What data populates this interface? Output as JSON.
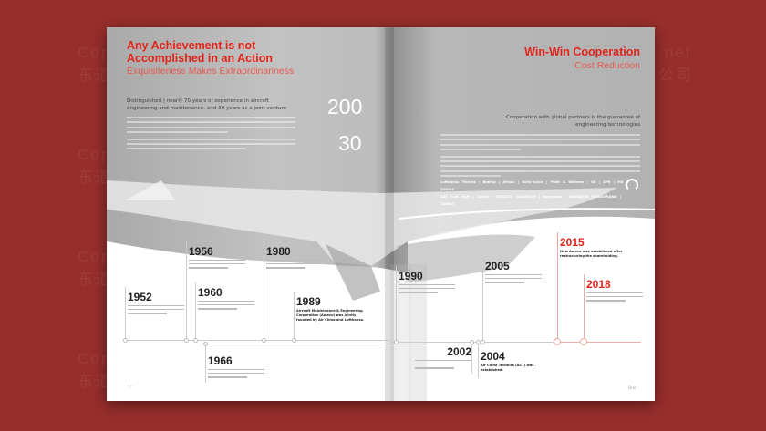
{
  "watermark": {
    "line1": "Copyright",
    "line1_end": ".net",
    "line2": "东道",
    "line2_end": "公司"
  },
  "left_page": {
    "title": "Any Achievement is not Accomplished in an Action",
    "subtitle": "Exquisiteness Makes Extraordinariness",
    "lead": "Distinguished | nearly 70 years of experience in aircraft engineering and maintenance, and 30 years as a joint venture",
    "stats": [
      {
        "value": "200"
      },
      {
        "value": "30"
      }
    ]
  },
  "right_page": {
    "title": "Win-Win Cooperation",
    "subtitle": "Cost Reduction",
    "lead": "Cooperation with global partners is the guarantee of engineering technologies",
    "partners_row1": "Lufthansa Technik | Boeing | Airbus | Rolls-Royce | Pratt & Whitney | GE | ZPH | MX | ZODIAC",
    "partners_row2": "AAT FLIR KAM | Safran | MEGGITT GOODRICH | Honeywell | HAMILTON SUNDSTRAND | ZODIAC",
    "logo": "One"
  },
  "timeline": [
    {
      "year": "1952",
      "desc": ""
    },
    {
      "year": "1956",
      "desc": ""
    },
    {
      "year": "1960",
      "desc": ""
    },
    {
      "year": "1966",
      "desc": ""
    },
    {
      "year": "1980",
      "desc": ""
    },
    {
      "year": "1989",
      "desc": "Aircraft Maintenance & Engineering Corporation (Ameco) was jointly founded by Air China and Lufthansa."
    },
    {
      "year": "1990",
      "desc": ""
    },
    {
      "year": "2002",
      "desc": ""
    },
    {
      "year": "2004",
      "desc": "Air China Technics (ACT) was established."
    },
    {
      "year": "2005",
      "desc": ""
    },
    {
      "year": "2015",
      "desc": "New Ameco was established after restructuring the shareholding.",
      "highlight": true
    },
    {
      "year": "2018",
      "desc": "",
      "highlight": true
    }
  ],
  "colors": {
    "background": "#962e2c",
    "accent": "#e2231a",
    "page_gray": "#b5b5b5"
  }
}
